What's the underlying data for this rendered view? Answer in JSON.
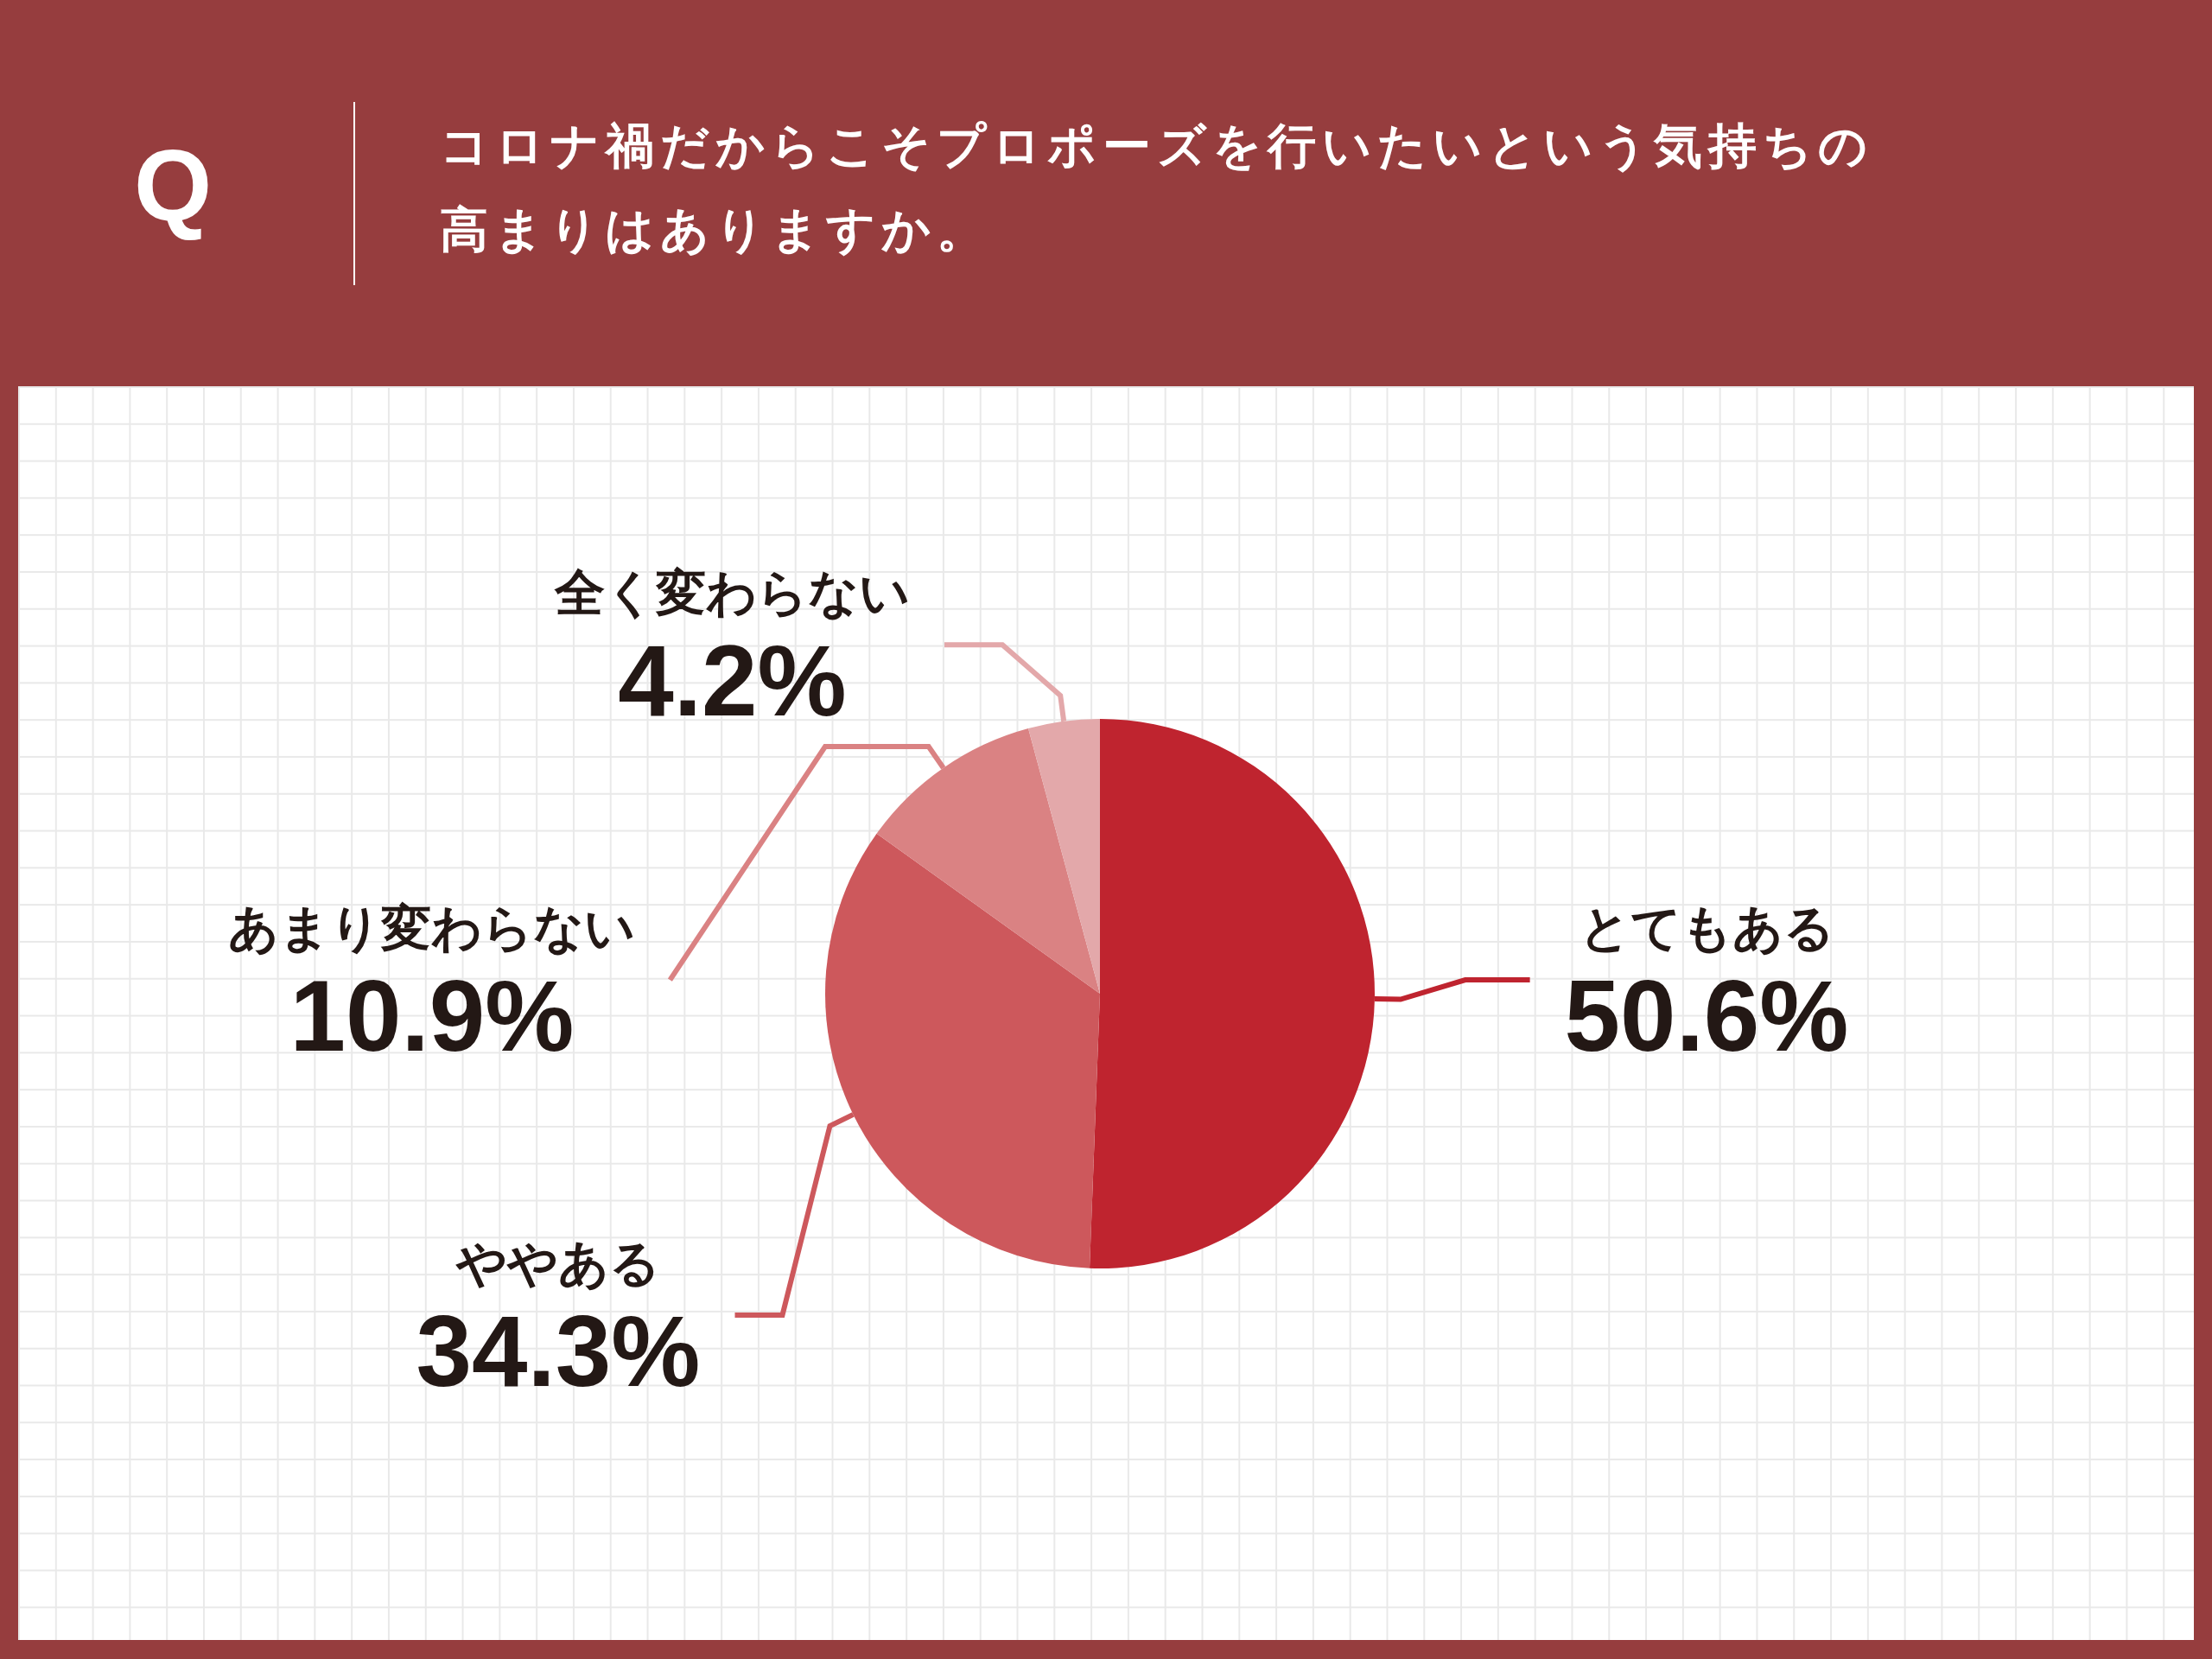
{
  "chart_data": {
    "type": "pie",
    "title": "コロナ禍だからこそプロポーズを行いたいという気持ちの高まりはありますか。",
    "annotations": [
      "Q"
    ],
    "categories": [
      "とてもある",
      "ややある",
      "あまり変わらない",
      "全く変わらない"
    ],
    "values": [
      50.6,
      34.3,
      10.9,
      4.2
    ],
    "value_labels": [
      "50.6%",
      "34.3%",
      "10.9%",
      "4.2%"
    ],
    "colors": [
      "#bf242f",
      "#cd585c",
      "#da8283",
      "#e3a8aa"
    ]
  }
}
